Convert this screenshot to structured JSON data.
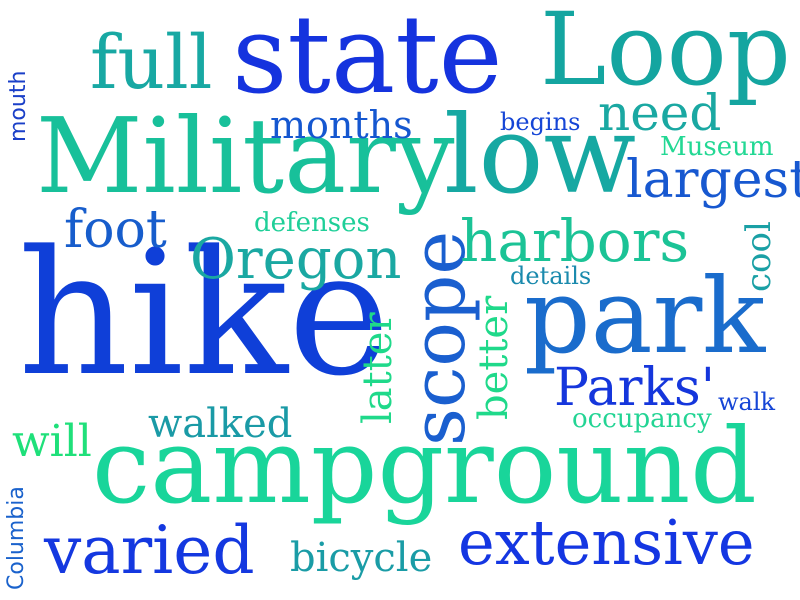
{
  "word_cloud": {
    "words": [
      {
        "text": "hike",
        "color": "#0f3fd8"
      },
      {
        "text": "campground",
        "color": "#19d59a"
      },
      {
        "text": "Military",
        "color": "#18c09a"
      },
      {
        "text": "state",
        "color": "#1533de"
      },
      {
        "text": "Loop",
        "color": "#14a5a0"
      },
      {
        "text": "low",
        "color": "#16a8a2"
      },
      {
        "text": "park",
        "color": "#1a6ccc"
      },
      {
        "text": "extensive",
        "color": "#1436e2"
      },
      {
        "text": "varied",
        "color": "#1438e0"
      },
      {
        "text": "full",
        "color": "#18a8a3"
      },
      {
        "text": "scope",
        "color": "#1a5fcf"
      },
      {
        "text": "largest",
        "color": "#1758d0"
      },
      {
        "text": "harbors",
        "color": "#1bc396"
      },
      {
        "text": "Oregon",
        "color": "#1aa8a2"
      },
      {
        "text": "need",
        "color": "#1aa8a2"
      },
      {
        "text": "Parks'",
        "color": "#1536dc"
      },
      {
        "text": "foot",
        "color": "#175dcc"
      },
      {
        "text": "months",
        "color": "#1557d0"
      },
      {
        "text": "walked",
        "color": "#1a9aa6"
      },
      {
        "text": "bicycle",
        "color": "#1a9ca6"
      },
      {
        "text": "will",
        "color": "#1fe07a"
      },
      {
        "text": "latter",
        "color": "#1fd98a"
      },
      {
        "text": "better",
        "color": "#1fd98a"
      },
      {
        "text": "cool",
        "color": "#1aa0a5"
      },
      {
        "text": "Museum",
        "color": "#23d894"
      },
      {
        "text": "defenses",
        "color": "#1fcf98"
      },
      {
        "text": "details",
        "color": "#1a8aad"
      },
      {
        "text": "begins",
        "color": "#1545d6"
      },
      {
        "text": "walk",
        "color": "#1545d6"
      },
      {
        "text": "occupancy",
        "color": "#23d494"
      },
      {
        "text": "mouth",
        "color": "#1a3fc8"
      },
      {
        "text": "Columbia",
        "color": "#1a62cc"
      }
    ]
  }
}
